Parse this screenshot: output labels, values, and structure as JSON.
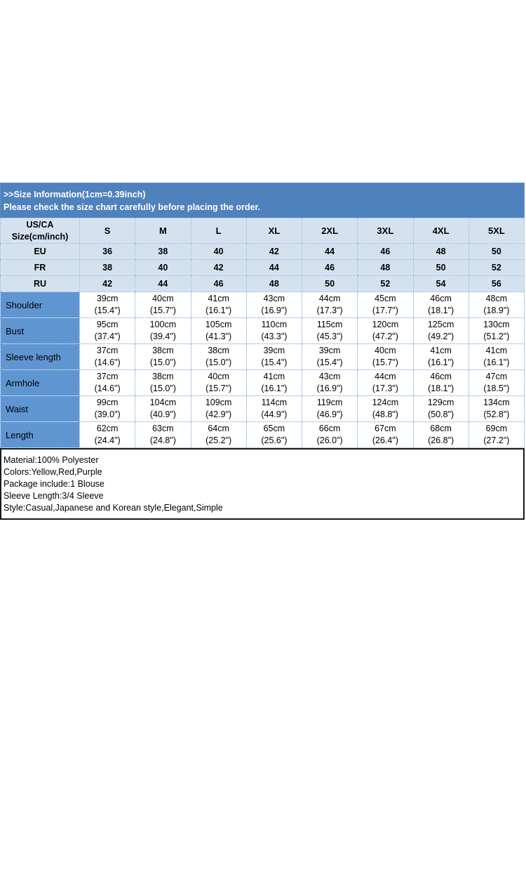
{
  "banner": {
    "title": ">>Size Information(1cm=0.39inch)",
    "subtitle": "Please check the size chart carefully before placing the order."
  },
  "table": {
    "corner_label_line1": "US/CA",
    "corner_label_line2": "Size(cm/inch)",
    "size_columns": [
      "S",
      "M",
      "L",
      "XL",
      "2XL",
      "3XL",
      "4XL",
      "5XL"
    ],
    "conversion_rows": [
      {
        "label": "EU",
        "values": [
          "36",
          "38",
          "40",
          "42",
          "44",
          "46",
          "48",
          "50"
        ]
      },
      {
        "label": "FR",
        "values": [
          "38",
          "40",
          "42",
          "44",
          "46",
          "48",
          "50",
          "52"
        ]
      },
      {
        "label": "RU",
        "values": [
          "42",
          "44",
          "46",
          "48",
          "50",
          "52",
          "54",
          "56"
        ]
      }
    ],
    "measurement_rows": [
      {
        "label": "Shoulder",
        "cm": [
          "39cm",
          "40cm",
          "41cm",
          "43cm",
          "44cm",
          "45cm",
          "46cm",
          "48cm"
        ],
        "inch": [
          "(15.4\")",
          "(15.7\")",
          "(16.1\")",
          "(16.9\")",
          "(17.3\")",
          "(17.7\")",
          "(18.1\")",
          "(18.9\")"
        ]
      },
      {
        "label": "Bust",
        "cm": [
          "95cm",
          "100cm",
          "105cm",
          "110cm",
          "115cm",
          "120cm",
          "125cm",
          "130cm"
        ],
        "inch": [
          "(37.4\")",
          "(39.4\")",
          "(41.3\")",
          "(43.3\")",
          "(45.3\")",
          "(47.2\")",
          "(49.2\")",
          "(51.2\")"
        ]
      },
      {
        "label": "Sleeve length",
        "cm": [
          "37cm",
          "38cm",
          "38cm",
          "39cm",
          "39cm",
          "40cm",
          "41cm",
          "41cm"
        ],
        "inch": [
          "(14.6\")",
          "(15.0\")",
          "(15.0\")",
          "(15.4\")",
          "(15.4\")",
          "(15.7\")",
          "(16.1\")",
          "(16.1\")"
        ]
      },
      {
        "label": "Armhole",
        "cm": [
          "37cm",
          "38cm",
          "40cm",
          "41cm",
          "43cm",
          "44cm",
          "46cm",
          "47cm"
        ],
        "inch": [
          "(14.6\")",
          "(15.0\")",
          "(15.7\")",
          "(16.1\")",
          "(16.9\")",
          "(17.3\")",
          "(18.1\")",
          "(18.5\")"
        ]
      },
      {
        "label": "Waist",
        "cm": [
          "99cm",
          "104cm",
          "109cm",
          "114cm",
          "119cm",
          "124cm",
          "129cm",
          "134cm"
        ],
        "inch": [
          "(39.0\")",
          "(40.9\")",
          "(42.9\")",
          "(44.9\")",
          "(46.9\")",
          "(48.8\")",
          "(50.8\")",
          "(52.8\")"
        ]
      },
      {
        "label": "Length",
        "cm": [
          "62cm",
          "63cm",
          "64cm",
          "65cm",
          "66cm",
          "67cm",
          "68cm",
          "69cm"
        ],
        "inch": [
          "(24.4\")",
          "(24.8\")",
          "(25.2\")",
          "(25.6\")",
          "(26.0\")",
          "(26.4\")",
          "(26.8\")",
          "(27.2\")"
        ]
      }
    ]
  },
  "info_box": {
    "lines": [
      "Material:100% Polyester",
      "Colors:Yellow,Red,Purple",
      "Package include:1 Blouse",
      "Sleeve Length:3/4 Sleeve",
      "Style:Casual,Japanese and Korean style,Elegant,Simple"
    ]
  },
  "colors": {
    "banner_bg": "#4f81bd",
    "banner_text": "#ffffff",
    "header_row_bg": "#d4e2f0",
    "label_col_bg": "#5f96d2",
    "border_dotted": "#6f9bd1",
    "text": "#000000",
    "info_border": "#1a1a1a"
  }
}
